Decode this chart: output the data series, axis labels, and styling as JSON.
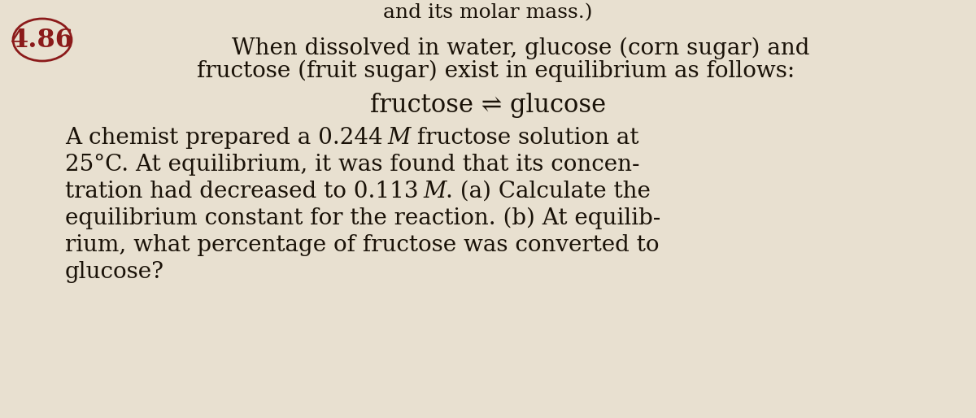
{
  "background_color": "#e8e0d0",
  "problem_number": "4.86",
  "problem_number_color": "#8B1A1A",
  "text_color": "#1a1208",
  "top_text": "and its molar mass.)",
  "line1": "When dissolved in water, glucose (corn sugar) and",
  "line2": "fructose (fruit sugar) exist in equilibrium as follows:",
  "equilibrium_text": "fructose ⇌ glucose",
  "body_lines": [
    "A chemist prepared a 0.244 M fructose solution at",
    "25°C. At equilibrium, it was found that its concen-",
    "tration had decreased to 0.113 M. (a) Calculate the",
    "equilibrium constant for the reaction. (b) At equilib-",
    "rium, what percentage of fructose was converted to",
    "glucose?"
  ],
  "italic_positions": [
    {
      "line": 0,
      "before": "A chemist prepared a 0.244 ",
      "italic": "M",
      "after": " fructose solution at"
    },
    {
      "line": 2,
      "before": "tration had decreased to 0.113 ",
      "italic": "M",
      "after": ". (a) Calculate the"
    }
  ],
  "font_size_top": 18,
  "font_size_main": 20,
  "font_size_number": 23,
  "font_size_equil": 22
}
